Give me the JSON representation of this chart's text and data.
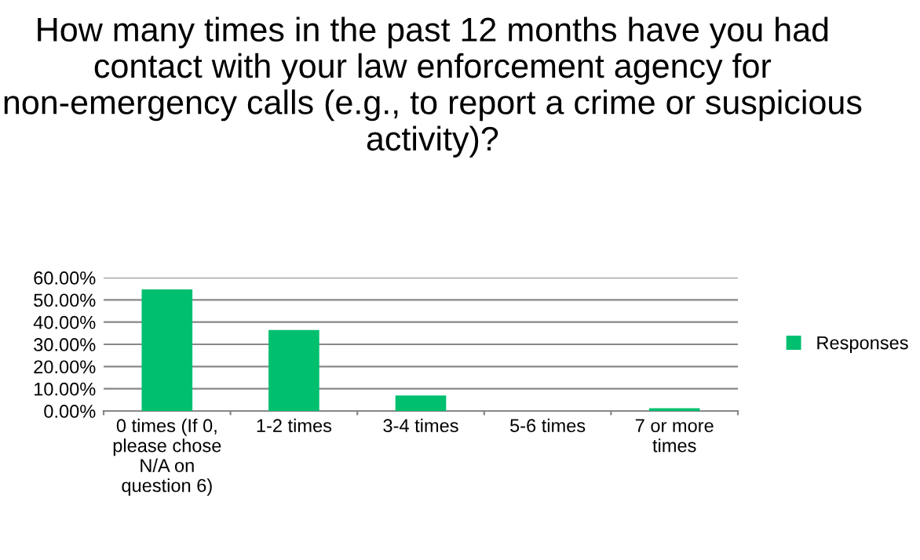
{
  "chart_data": {
    "type": "bar",
    "title": "How many times in the past 12 months have you had contact with your law enforcement agency for non-emergency calls (e.g., to report a crime or suspicious activity)?",
    "categories": [
      "0 times (If 0,\nplease chose\nN/A on\nquestion 6)",
      "1-2 times",
      "3-4 times",
      "5-6 times",
      "7 or more\ntimes"
    ],
    "series": [
      {
        "name": "Responses",
        "color": "#00bf6f",
        "values": [
          54.7,
          36.4,
          7.0,
          0,
          1.2
        ]
      }
    ],
    "ylim": [
      0,
      60
    ],
    "yticks": [
      {
        "value": 0,
        "label": "0.00%"
      },
      {
        "value": 10,
        "label": "10.00%"
      },
      {
        "value": 20,
        "label": "20.00%"
      },
      {
        "value": 30,
        "label": "30.00%"
      },
      {
        "value": 40,
        "label": "40.00%"
      },
      {
        "value": 50,
        "label": "50.00%"
      },
      {
        "value": 60,
        "label": "60.00%"
      }
    ],
    "grid": "y",
    "legend": "right"
  }
}
